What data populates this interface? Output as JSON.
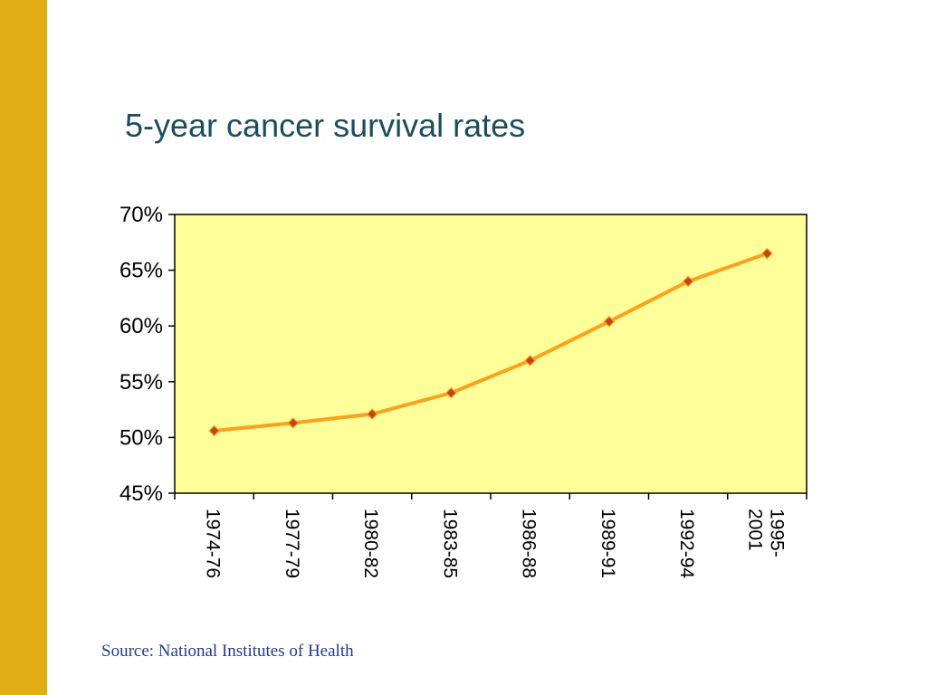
{
  "colors": {
    "side_bar": "#E0AD12",
    "title": "#1A4D5E",
    "plot_background": "#FFFF99",
    "line": "#FFA01A",
    "marker": "#C0431A",
    "source_text": "#1F3A93"
  },
  "slide": {
    "title": "5-year cancer survival rates",
    "source": "Source: National Institutes of Health"
  },
  "chart_data": {
    "type": "line",
    "title": "",
    "xlabel": "",
    "ylabel": "",
    "y_format": "percent",
    "ylim": [
      45,
      70
    ],
    "y_ticks": [
      45,
      50,
      55,
      60,
      65,
      70
    ],
    "y_tick_labels": [
      "45%",
      "50%",
      "55%",
      "60%",
      "65%",
      "70%"
    ],
    "grid": false,
    "legend": "none",
    "categories": [
      "1974-76",
      "1977-79",
      "1980-82",
      "1983-85",
      "1986-88",
      "1989-91",
      "1992-94",
      "1995-2001"
    ],
    "category_label_lines": [
      [
        "1974-76"
      ],
      [
        "1977-79"
      ],
      [
        "1980-82"
      ],
      [
        "1983-85"
      ],
      [
        "1986-88"
      ],
      [
        "1989-91"
      ],
      [
        "1992-94"
      ],
      [
        "1995-",
        "2001"
      ]
    ],
    "series": [
      {
        "values": [
          50.6,
          51.3,
          52.1,
          54.0,
          56.9,
          60.4,
          64.0,
          66.5
        ],
        "marker": "diamond"
      }
    ]
  }
}
